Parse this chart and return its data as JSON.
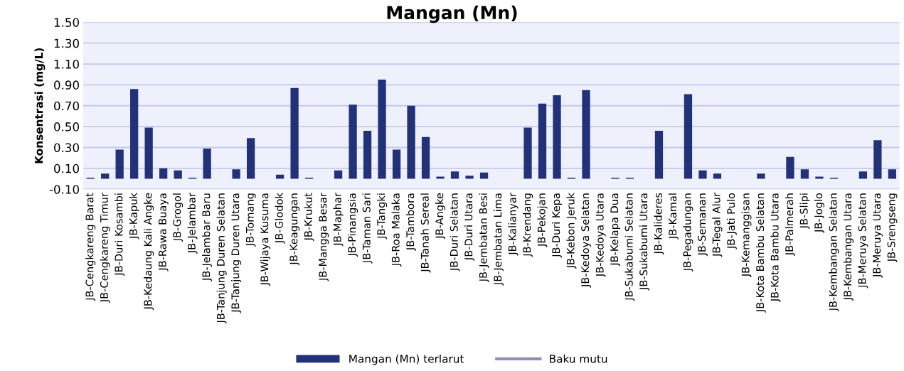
{
  "chart_data": {
    "type": "bar",
    "title": "Mangan (Mn)",
    "ylabel": "Konsentrasi (mg/L)",
    "categories": [
      "JB-Cengkareng Barat",
      "JB-Cengkareng Timur",
      "JB-Duri Kosambi",
      "JB-Kapuk",
      "JB-Kedaung Kali Angke",
      "JB-Rawa Buaya",
      "JB-Grogol",
      "JB-Jelambar",
      "JB-Jelambar Baru",
      "JB-Tanjung Duren Selatan",
      "JB-Tanjung Duren Utara",
      "JB-Tomang",
      "JB-Wijaya Kusuma",
      "JB-Glodok",
      "JB-Keagungan",
      "JB-Krukut",
      "JB-Mangga Besar",
      "JB-Maphar",
      "JB-Pinangsia",
      "JB-Taman Sari",
      "JB-Tangki",
      "JB-Roa Malaka",
      "JB-Tambora",
      "JB-Tanah Sereal",
      "JB-Angke",
      "JB-Duri Selatan",
      "JB-Duri Utara",
      "JB-Jembatan Besi",
      "JB-Jembatan Lima",
      "JB-Kalianyar",
      "JB-Krendang",
      "JB-Pekojan",
      "JB-Duri Kepa",
      "JB-Kebon Jeruk",
      "JB-Kedoya Selatan",
      "JB-Kedoya Utara",
      "JB-Kelapa Dua",
      "JB-Sukabumi Selatan",
      "JB-Sukabumi Utara",
      "JB-Kalideres",
      "JB-Kamal",
      "JB-Pegadungan",
      "JB-Semanan",
      "JB-Tegal Alur",
      "JB-Jati Pulo",
      "JB-Kemanggisan",
      "JB-Kota Bambu Selatan",
      "JB-Kota Bambu Utara",
      "JB-Palmerah",
      "JB-Slipi",
      "JB-Joglo",
      "JB-Kembangan Selatan",
      "JB-Kembangan Utara",
      "JB-Meruya Selatan",
      "JB-Meruya Utara",
      "JB-Srengseng"
    ],
    "series": [
      {
        "name": "Mangan (Mn) terlarut",
        "color": "#223278",
        "values": [
          0.01,
          0.05,
          0.28,
          0.86,
          0.49,
          0.1,
          0.08,
          0.01,
          0.29,
          0,
          0.09,
          0.39,
          0,
          0.04,
          0.87,
          0.01,
          0,
          0.08,
          0.71,
          0.46,
          0.95,
          0.28,
          0.7,
          0.4,
          0.02,
          0.07,
          0.03,
          0.06,
          0,
          0,
          0.49,
          0.72,
          0.8,
          0.01,
          0.85,
          0,
          0.01,
          0.01,
          0,
          0.46,
          0,
          0.81,
          0.08,
          0.05,
          0,
          0,
          0.05,
          0,
          0.21,
          0.09,
          0.02,
          0.01,
          0,
          0.07,
          0.37,
          0.09
        ]
      },
      {
        "name": "Baku mutu",
        "type": "line",
        "color": "#8e8fb8",
        "values": [
          null,
          null,
          null,
          null,
          null,
          null,
          null,
          null,
          null,
          null,
          null,
          null,
          null,
          null,
          null,
          null,
          null,
          null,
          null,
          null,
          null,
          null,
          null,
          null,
          null,
          null,
          null,
          null,
          null,
          null,
          null,
          null,
          null,
          null,
          null,
          null,
          null,
          null,
          null,
          null,
          null,
          null,
          null,
          null,
          null,
          null,
          null,
          null,
          null,
          null,
          null,
          null,
          null,
          null,
          null,
          null
        ]
      }
    ],
    "ylim": [
      -0.1,
      1.5
    ],
    "yticks": [
      {
        "value": -0.1,
        "label": "-0.10"
      },
      {
        "value": 0.1,
        "label": "0.10"
      },
      {
        "value": 0.3,
        "label": "0.30"
      },
      {
        "value": 0.5,
        "label": "0.50"
      },
      {
        "value": 0.7,
        "label": "0.70"
      },
      {
        "value": 0.9,
        "label": "0.90"
      },
      {
        "value": 1.1,
        "label": "1.10"
      },
      {
        "value": 1.3,
        "label": "1.30"
      },
      {
        "value": 1.5,
        "label": "1.50"
      }
    ],
    "grid": "y",
    "legend": "bottom"
  }
}
